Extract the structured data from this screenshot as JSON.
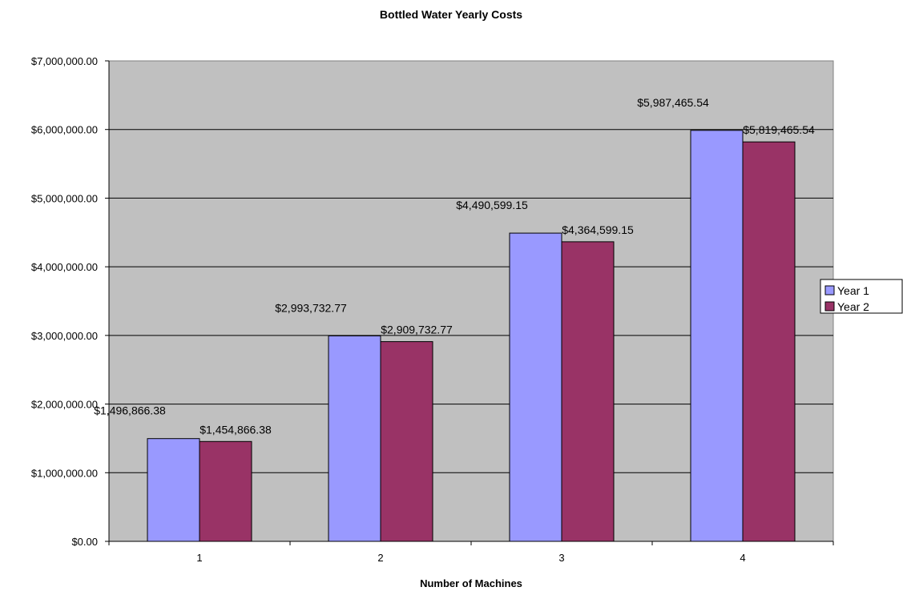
{
  "chart_data": {
    "type": "bar",
    "title": "Bottled Water Yearly Costs",
    "xlabel": "Number of Machines",
    "ylabel": "",
    "categories": [
      "1",
      "2",
      "3",
      "4"
    ],
    "series": [
      {
        "name": "Year 1",
        "color": "#9999ff",
        "values": [
          1496866.38,
          2993732.77,
          4490599.15,
          5987465.54
        ],
        "labels": [
          "$1,496,866.38",
          "$2,993,732.77",
          "$4,490,599.15",
          "$5,987,465.54"
        ]
      },
      {
        "name": "Year 2",
        "color": "#993366",
        "values": [
          1454866.38,
          2909732.77,
          4364599.15,
          5819465.54
        ],
        "labels": [
          "$1,454,866.38",
          "$2,909,732.77",
          "$4,364,599.15",
          "$5,819,465.54"
        ]
      }
    ],
    "ylim": [
      0,
      7000000
    ],
    "yticks": [
      0,
      1000000,
      2000000,
      3000000,
      4000000,
      5000000,
      6000000,
      7000000
    ],
    "ytick_labels": [
      "$0.00",
      "$1,000,000.00",
      "$2,000,000.00",
      "$3,000,000.00",
      "$4,000,000.00",
      "$5,000,000.00",
      "$6,000,000.00",
      "$7,000,000.00"
    ],
    "grid": true,
    "plot_background": "#c0c0c0",
    "legend": "right"
  }
}
